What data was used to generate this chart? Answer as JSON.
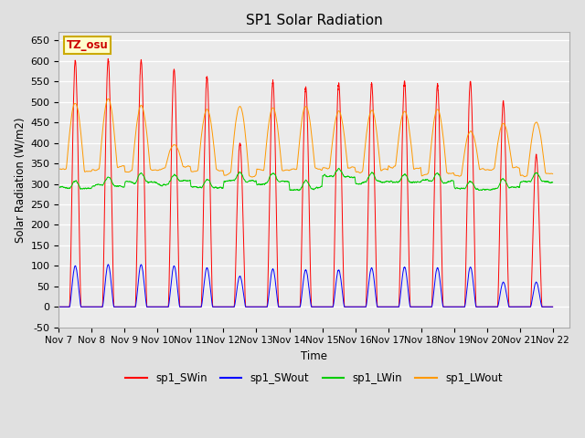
{
  "title": "SP1 Solar Radiation",
  "ylabel": "Solar Radiation (W/m2)",
  "xlabel": "Time",
  "ylim": [
    -50,
    670
  ],
  "xlim": [
    0,
    15.5
  ],
  "xtick_labels": [
    "Nov 7",
    "Nov 8",
    "Nov 9",
    "Nov 10",
    "Nov 11",
    "Nov 12",
    "Nov 13",
    "Nov 14",
    "Nov 15",
    "Nov 16",
    "Nov 17",
    "Nov 18",
    "Nov 19",
    "Nov 20",
    "Nov 21",
    "Nov 22"
  ],
  "ytick_values": [
    -50,
    0,
    50,
    100,
    150,
    200,
    250,
    300,
    350,
    400,
    450,
    500,
    550,
    600,
    650
  ],
  "fig_bg_color": "#e0e0e0",
  "plot_bg_color": "#ebebeb",
  "grid_color": "white",
  "series_colors": {
    "sp1_SWin": "#ff0000",
    "sp1_SWout": "#0000ff",
    "sp1_LWin": "#00cc00",
    "sp1_LWout": "#ff9900"
  },
  "legend_labels": [
    "sp1_SWin",
    "sp1_SWout",
    "sp1_LWin",
    "sp1_LWout"
  ],
  "tz_label": "TZ_osu",
  "tz_bg": "#ffffcc",
  "tz_border": "#ccaa00",
  "tz_text_color": "#cc0000",
  "sw_peaks": [
    600,
    603,
    602,
    580,
    560,
    400,
    550,
    535,
    545,
    545,
    550,
    540,
    550,
    500,
    370
  ],
  "sw_out_peaks": [
    100,
    103,
    103,
    100,
    95,
    75,
    92,
    90,
    90,
    95,
    97,
    95,
    97,
    60,
    60
  ],
  "lw_baseline": 310,
  "lwout_baseline": 330,
  "lwout_day_peaks": [
    500,
    505,
    490,
    395,
    480,
    490,
    490,
    490,
    480,
    480,
    480,
    480,
    430,
    450,
    450
  ]
}
